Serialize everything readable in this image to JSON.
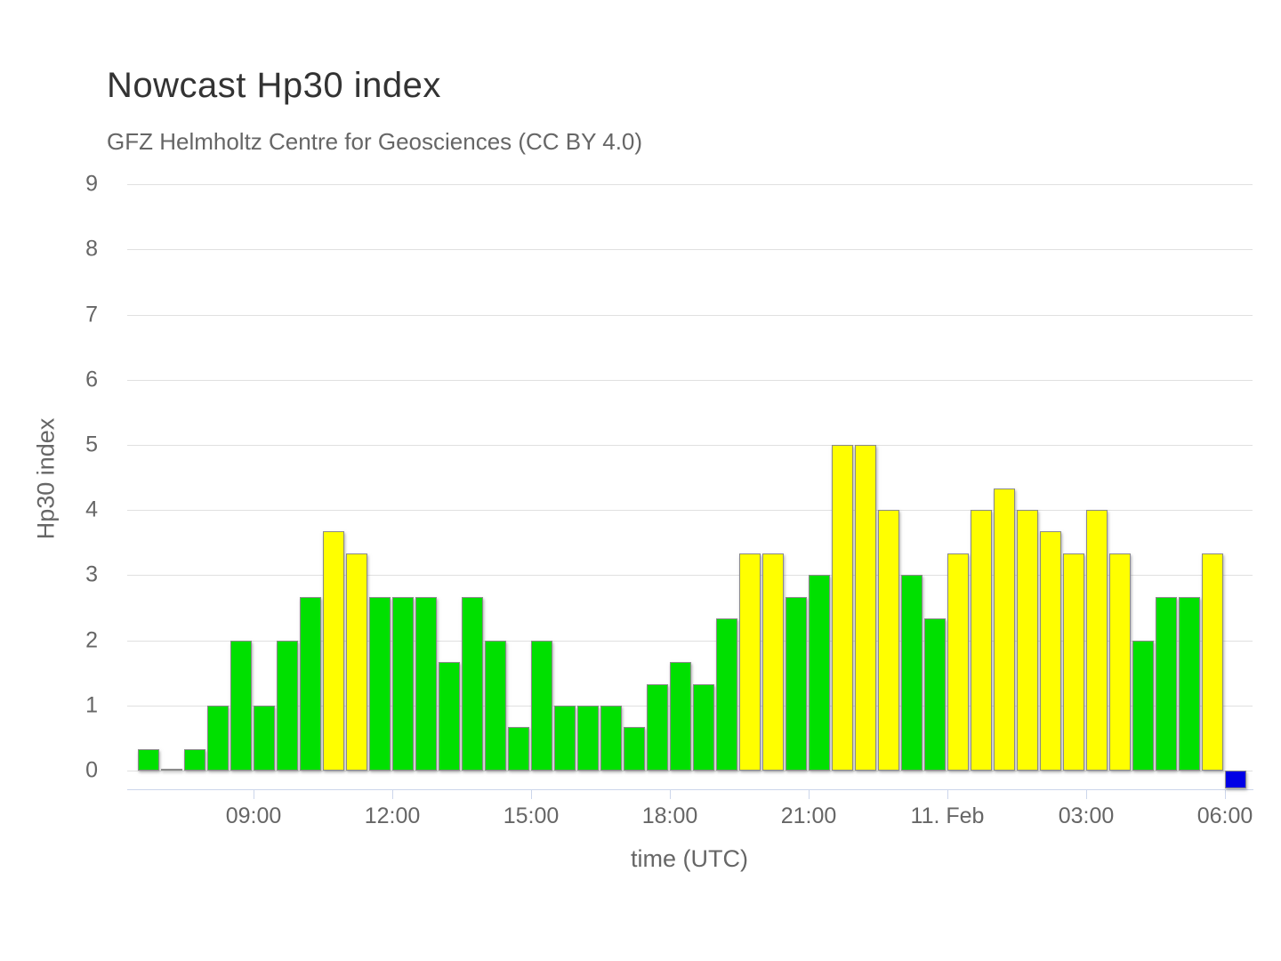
{
  "chart_data": {
    "type": "bar",
    "title": "Nowcast Hp30 index",
    "subtitle": "GFZ Helmholtz Centre for Geosciences (CC BY 4.0)",
    "xlabel": "time (UTC)",
    "ylabel": "Hp30 index",
    "ylim": [
      0,
      9
    ],
    "y_ticks": [
      0,
      1,
      2,
      3,
      4,
      5,
      6,
      7,
      8,
      9
    ],
    "grid": true,
    "legend": "none",
    "bar_interval_minutes": 30,
    "colors": {
      "green": "#00e000",
      "yellow": "#ffff00",
      "blue": "#0000e6",
      "axis_line": "#ccd6eb",
      "gridline": "#e0e0e0",
      "label": "#666666",
      "title": "#333333",
      "bar_border": "#8a8a8a"
    },
    "x_ticks": [
      {
        "label": "09:00",
        "slot": 5
      },
      {
        "label": "12:00",
        "slot": 11
      },
      {
        "label": "15:00",
        "slot": 17
      },
      {
        "label": "18:00",
        "slot": 23
      },
      {
        "label": "21:00",
        "slot": 29
      },
      {
        "label": "11. Feb",
        "slot": 35
      },
      {
        "label": "03:00",
        "slot": 41
      },
      {
        "label": "06:00",
        "slot": 47
      }
    ],
    "series": [
      {
        "name": "Hp30",
        "points": [
          {
            "t": "06:30",
            "v": 0.33,
            "c": "green"
          },
          {
            "t": "07:00",
            "v": 0,
            "c": "green"
          },
          {
            "t": "07:30",
            "v": 0.33,
            "c": "green"
          },
          {
            "t": "08:00",
            "v": 1,
            "c": "green"
          },
          {
            "t": "08:30",
            "v": 2,
            "c": "green"
          },
          {
            "t": "09:00",
            "v": 1,
            "c": "green"
          },
          {
            "t": "09:30",
            "v": 2,
            "c": "green"
          },
          {
            "t": "10:00",
            "v": 2.67,
            "c": "green"
          },
          {
            "t": "10:30",
            "v": 3.67,
            "c": "yellow"
          },
          {
            "t": "11:00",
            "v": 3.33,
            "c": "yellow"
          },
          {
            "t": "11:30",
            "v": 2.67,
            "c": "green"
          },
          {
            "t": "12:00",
            "v": 2.67,
            "c": "green"
          },
          {
            "t": "12:30",
            "v": 2.67,
            "c": "green"
          },
          {
            "t": "13:00",
            "v": 1.67,
            "c": "green"
          },
          {
            "t": "13:30",
            "v": 2.67,
            "c": "green"
          },
          {
            "t": "14:00",
            "v": 2,
            "c": "green"
          },
          {
            "t": "14:30",
            "v": 0.67,
            "c": "green"
          },
          {
            "t": "15:00",
            "v": 2,
            "c": "green"
          },
          {
            "t": "15:30",
            "v": 1,
            "c": "green"
          },
          {
            "t": "16:00",
            "v": 1,
            "c": "green"
          },
          {
            "t": "16:30",
            "v": 1,
            "c": "green"
          },
          {
            "t": "17:00",
            "v": 0.67,
            "c": "green"
          },
          {
            "t": "17:30",
            "v": 1.33,
            "c": "green"
          },
          {
            "t": "18:00",
            "v": 1.67,
            "c": "green"
          },
          {
            "t": "18:30",
            "v": 1.33,
            "c": "green"
          },
          {
            "t": "19:00",
            "v": 2.33,
            "c": "green"
          },
          {
            "t": "19:30",
            "v": 3.33,
            "c": "yellow"
          },
          {
            "t": "20:00",
            "v": 3.33,
            "c": "yellow"
          },
          {
            "t": "20:30",
            "v": 2.67,
            "c": "green"
          },
          {
            "t": "21:00",
            "v": 3,
            "c": "green"
          },
          {
            "t": "21:30",
            "v": 5,
            "c": "yellow"
          },
          {
            "t": "22:00",
            "v": 5,
            "c": "yellow"
          },
          {
            "t": "22:30",
            "v": 4,
            "c": "yellow"
          },
          {
            "t": "23:00",
            "v": 3,
            "c": "green"
          },
          {
            "t": "23:30",
            "v": 2.33,
            "c": "green"
          },
          {
            "t": "00:00",
            "v": 3.33,
            "c": "yellow"
          },
          {
            "t": "00:30",
            "v": 4,
            "c": "yellow"
          },
          {
            "t": "01:00",
            "v": 4.33,
            "c": "yellow"
          },
          {
            "t": "01:30",
            "v": 4,
            "c": "yellow"
          },
          {
            "t": "02:00",
            "v": 3.67,
            "c": "yellow"
          },
          {
            "t": "02:30",
            "v": 3.33,
            "c": "yellow"
          },
          {
            "t": "03:00",
            "v": 4,
            "c": "yellow"
          },
          {
            "t": "03:30",
            "v": 3.33,
            "c": "yellow"
          },
          {
            "t": "04:00",
            "v": 2,
            "c": "green"
          },
          {
            "t": "04:30",
            "v": 2.67,
            "c": "green"
          },
          {
            "t": "05:00",
            "v": 2.67,
            "c": "green"
          },
          {
            "t": "05:30",
            "v": 3.33,
            "c": "yellow"
          },
          {
            "t": "06:00",
            "v": null,
            "c": "blue",
            "pending": true
          }
        ]
      }
    ]
  }
}
